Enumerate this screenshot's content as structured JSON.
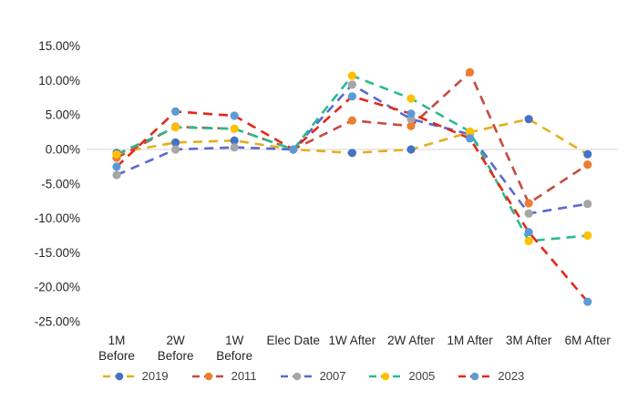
{
  "chart_data": {
    "type": "line",
    "title": "",
    "xlabel": "",
    "ylabel": "",
    "categories": [
      "1M Before",
      "2W Before",
      "1W Before",
      "Elec Date",
      "1W After",
      "2W After",
      "1M After",
      "3M After",
      "6M After"
    ],
    "x_tick_lines": [
      [
        "1M",
        "Before"
      ],
      [
        "2W",
        "Before"
      ],
      [
        "1W",
        "Before"
      ],
      [
        "Elec Date"
      ],
      [
        "1W After"
      ],
      [
        "2W After"
      ],
      [
        "1M After"
      ],
      [
        "3M After"
      ],
      [
        "6M After"
      ]
    ],
    "y_axis": {
      "ylim": [
        -25,
        15
      ],
      "ticks": [
        15,
        10,
        5,
        0,
        -5,
        -10,
        -15,
        -20,
        -25
      ],
      "tick_labels": [
        "15.00%",
        "10.00%",
        "5.00%",
        "0.00%",
        "-5.00%",
        "-10.00%",
        "-15.00%",
        "-20.00%",
        "-25.00%"
      ]
    },
    "grid": "zero-line-only",
    "line_style": "dashed",
    "legend_position": "bottom",
    "series": [
      {
        "name": "2019",
        "line_color": "#E4AF1C",
        "marker_color": "#4472C4",
        "values": [
          -0.5,
          1.0,
          1.3,
          0.0,
          -0.5,
          0.0,
          2.5,
          4.4,
          -0.7
        ]
      },
      {
        "name": "2011",
        "line_color": "#C64A3F",
        "marker_color": "#ED7D31",
        "values": [
          -1.2,
          3.3,
          3.0,
          0.0,
          4.2,
          3.4,
          11.2,
          -7.8,
          -2.2
        ]
      },
      {
        "name": "2007",
        "line_color": "#5A68D5",
        "marker_color": "#A6A6A6",
        "values": [
          -3.7,
          0.0,
          0.3,
          0.0,
          9.4,
          4.4,
          2.2,
          -9.3,
          -7.9
        ]
      },
      {
        "name": "2005",
        "line_color": "#2ABB8C",
        "marker_color": "#FFC000",
        "values": [
          -0.7,
          3.2,
          3.0,
          0.0,
          10.7,
          7.4,
          2.6,
          -13.3,
          -12.5
        ]
      },
      {
        "name": "2023",
        "line_color": "#E42817",
        "marker_color": "#5B9BD5",
        "values": [
          -2.5,
          5.5,
          4.9,
          0.0,
          7.7,
          5.2,
          1.6,
          -12.0,
          -22.1
        ]
      }
    ]
  },
  "colors": {
    "background": "#FFFFFF",
    "zero_line": "#D6D6D6",
    "axis_text": "#262626",
    "legend_text": "#404040"
  }
}
